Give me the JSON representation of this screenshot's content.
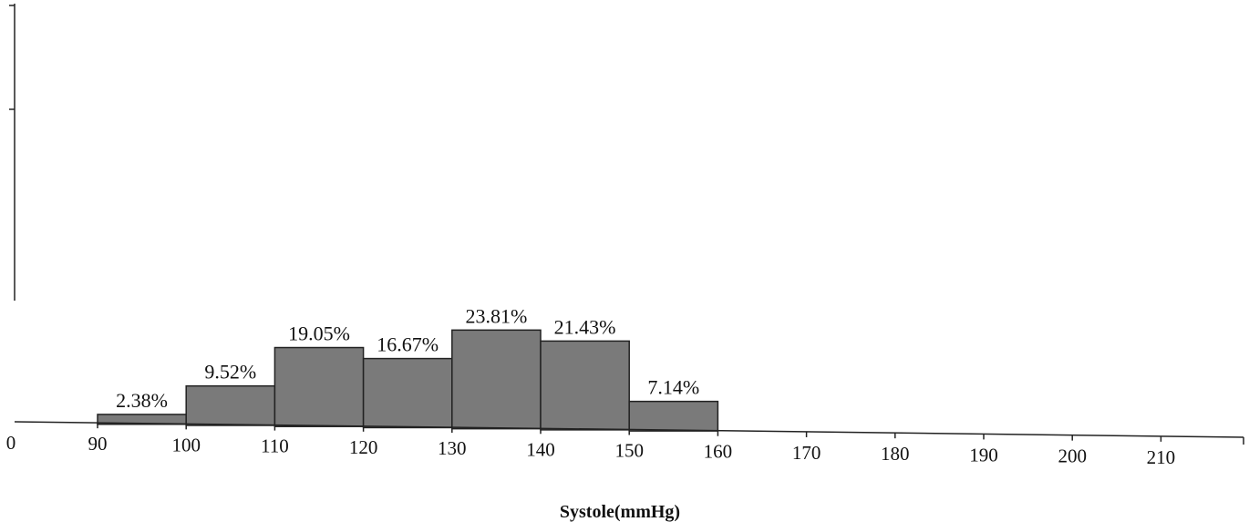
{
  "chart_data": {
    "type": "bar",
    "histogram": true,
    "xlabel": "Systole(mmHg)",
    "x_ticks": [
      "0",
      "90",
      "100",
      "110",
      "120",
      "130",
      "140",
      "150",
      "160",
      "170",
      "180",
      "190",
      "200",
      "210"
    ],
    "bins": [
      {
        "from": 90,
        "to": 100,
        "value": 2.38,
        "label": "2.38%"
      },
      {
        "from": 100,
        "to": 110,
        "value": 9.52,
        "label": "9.52%"
      },
      {
        "from": 110,
        "to": 120,
        "value": 19.05,
        "label": "19.05%"
      },
      {
        "from": 120,
        "to": 130,
        "value": 16.67,
        "label": "16.67%"
      },
      {
        "from": 130,
        "to": 140,
        "value": 23.81,
        "label": "23.81%"
      },
      {
        "from": 140,
        "to": 150,
        "value": 21.43,
        "label": "21.43%"
      },
      {
        "from": 150,
        "to": 160,
        "value": 7.14,
        "label": "7.14%"
      }
    ],
    "grid": false,
    "legend": "none",
    "colors": {
      "bar_fill": "#7a7a7a",
      "bar_stroke": "#222222",
      "axis": "#222222"
    }
  }
}
